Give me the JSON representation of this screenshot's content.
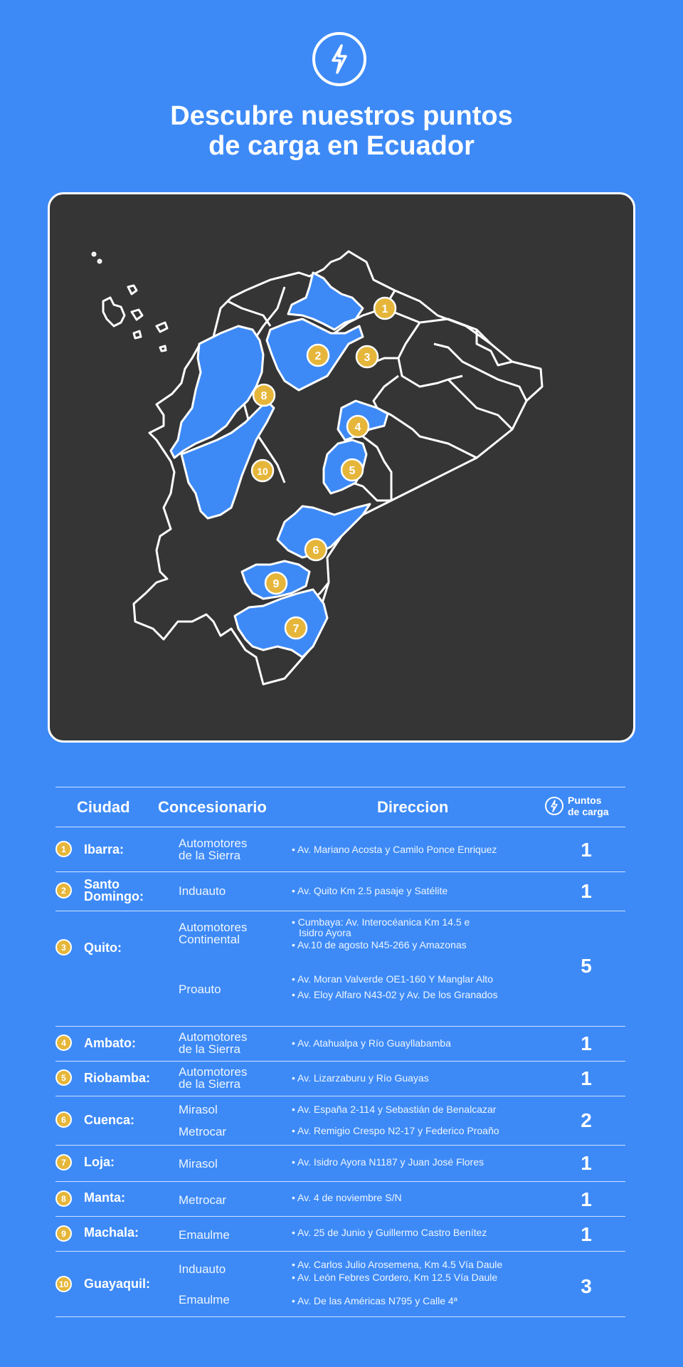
{
  "header": {
    "title_line1": "Descubre nuestros puntos",
    "title_line2": "de carga en Ecuador"
  },
  "map": {
    "markers": [
      "1",
      "2",
      "3",
      "4",
      "5",
      "6",
      "7",
      "8",
      "9",
      "10"
    ],
    "marker_color": "#e6b63a",
    "highlight_color": "#3d8af7"
  },
  "table": {
    "headers": {
      "ciudad": "Ciudad",
      "concesionario": "Concesionario",
      "direccion": "Direccion",
      "puntos_line1": "Puntos",
      "puntos_line2": "de carga"
    },
    "rows": [
      {
        "num": "1",
        "city_line1": "Ibarra:",
        "city_line2": "",
        "dealers": [
          {
            "line1": "Automotores",
            "line2": "de la Sierra"
          }
        ],
        "addresses": [
          "• Av. Mariano Acosta y Camilo Ponce Enriquez"
        ],
        "points": "1"
      },
      {
        "num": "2",
        "city_line1": "Santo",
        "city_line2": "Domingo:",
        "dealers": [
          {
            "line1": "Induauto",
            "line2": ""
          }
        ],
        "addresses": [
          "• Av. Quito Km 2.5 pasaje y Satélite"
        ],
        "points": "1"
      },
      {
        "num": "3",
        "city_line1": "Quito:",
        "city_line2": "",
        "dealers": [
          {
            "line1": "Automotores",
            "line2": "Continental"
          },
          {
            "line1": "Proauto",
            "line2": ""
          }
        ],
        "addresses": [
          "• Cumbaya: Av. Interocéanica Km 14.5 e",
          "Isidro Ayora",
          "• Av.10 de agosto N45-266 y Amazonas",
          "• Av. Moran Valverde OE1-160 Y Manglar Alto",
          "• Av. Eloy Alfaro N43-02 y Av. De los Granados"
        ],
        "points": "5"
      },
      {
        "num": "4",
        "city_line1": "Ambato:",
        "city_line2": "",
        "dealers": [
          {
            "line1": "Automotores",
            "line2": "de la Sierra"
          }
        ],
        "addresses": [
          "• Av. Atahualpa y Río Guayllabamba"
        ],
        "points": "1"
      },
      {
        "num": "5",
        "city_line1": "Riobamba:",
        "city_line2": "",
        "dealers": [
          {
            "line1": "Automotores",
            "line2": "de la Sierra"
          }
        ],
        "addresses": [
          "• Av. Lizarzaburu y Río Guayas"
        ],
        "points": "1"
      },
      {
        "num": "6",
        "city_line1": "Cuenca:",
        "city_line2": "",
        "dealers": [
          {
            "line1": "Mirasol",
            "line2": ""
          },
          {
            "line1": "Metrocar",
            "line2": ""
          }
        ],
        "addresses": [
          "• Av. España 2-114 y Sebastián de Benalcazar",
          "• Av. Remigio Crespo N2-17 y Federico Proaño"
        ],
        "points": "2"
      },
      {
        "num": "7",
        "city_line1": "Loja:",
        "city_line2": "",
        "dealers": [
          {
            "line1": "Mirasol",
            "line2": ""
          }
        ],
        "addresses": [
          "• Av. Isidro Ayora N1187 y Juan José Flores"
        ],
        "points": "1"
      },
      {
        "num": "8",
        "city_line1": "Manta:",
        "city_line2": "",
        "dealers": [
          {
            "line1": "Metrocar",
            "line2": ""
          }
        ],
        "addresses": [
          "• Av. 4 de noviembre S/N"
        ],
        "points": "1"
      },
      {
        "num": "9",
        "city_line1": "Machala:",
        "city_line2": "",
        "dealers": [
          {
            "line1": "Emaulme",
            "line2": ""
          }
        ],
        "addresses": [
          "• Av. 25 de Junio y Guillermo Castro Benítez"
        ],
        "points": "1"
      },
      {
        "num": "10",
        "city_line1": "Guayaquil:",
        "city_line2": "",
        "dealers": [
          {
            "line1": "Induauto",
            "line2": ""
          },
          {
            "line1": "Emaulme",
            "line2": ""
          }
        ],
        "addresses": [
          "• Av. Carlos Julio Arosemena, Km 4.5 Vía Daule",
          "• Av. León Febres Cordero, Km 12.5 Vía Daule",
          "• Av. De las Américas N795 y Calle 4ª"
        ],
        "points": "3"
      }
    ]
  }
}
